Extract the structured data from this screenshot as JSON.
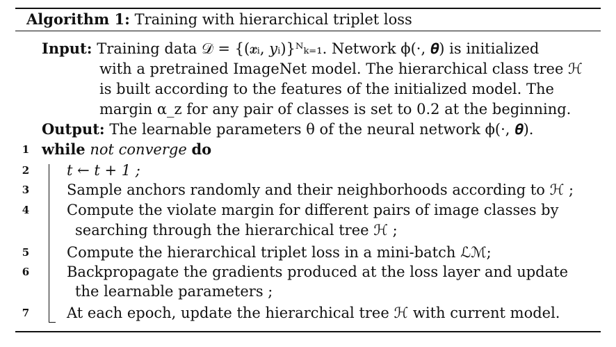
{
  "algorithm": {
    "label": "Algorithm 1:",
    "title": "Training with hierarchical triplet loss"
  },
  "input": {
    "label": "Input:",
    "lines": [
      "Training data 𝒟 = {(𝒙ᵢ, 𝑦ᵢ)}ᴺₖ₌₁. Network ϕ(·, 𝜽) is initialized",
      "with a pretrained ImageNet model. The hierarchical class tree ℋ",
      "is built according to the features of the initialized model. The",
      "margin α_z for any pair of classes is set to 0.2 at the beginning."
    ]
  },
  "output": {
    "label": "Output:",
    "text": "The learnable parameters θ of the neural network ϕ(·, 𝜽)."
  },
  "steps": [
    {
      "num": "1",
      "keyword": "while",
      "condition": "not converge",
      "keyword_end": "do"
    },
    {
      "num": "2",
      "text": "t ← t + 1 ;"
    },
    {
      "num": "3",
      "text": "Sample anchors randomly and their neighborhoods according to ℋ ;"
    },
    {
      "num": "4",
      "text": "Compute the violate margin for different pairs of image classes by",
      "continuation": "searching through the hierarchical tree ℋ ;"
    },
    {
      "num": "5",
      "text": "Compute the hierarchical triplet loss in a mini-batch ℒℳ;"
    },
    {
      "num": "6",
      "text": "Backpropagate the gradients produced at the loss layer and update",
      "continuation": "the learnable parameters ;"
    },
    {
      "num": "7",
      "text": "At each epoch, update the hierarchical tree ℋ with current model."
    }
  ]
}
